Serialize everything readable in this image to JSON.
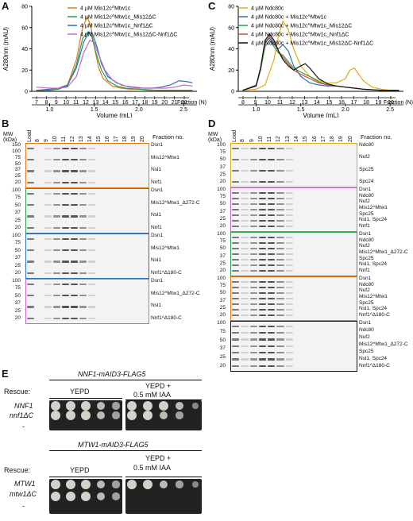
{
  "panels": {
    "A": "A",
    "B": "B",
    "C": "C",
    "D": "D",
    "E": "E"
  },
  "chart_data": [
    {
      "type": "line",
      "panel": "A",
      "xlabel": "Volume (mL)",
      "ylabel": "A280nm (mAU)",
      "xlim": [
        0.8,
        2.65
      ],
      "ylim": [
        0,
        80
      ],
      "x_ticks": [
        "1.0",
        "1.5",
        "2.0",
        "2.5"
      ],
      "y_ticks": [
        "0",
        "20",
        "40",
        "60",
        "80"
      ],
      "fraction_label": "Fraction (N)",
      "fractions": [
        "7",
        "8",
        "9",
        "10",
        "11",
        "12",
        "13",
        "14",
        "15",
        "16",
        "17",
        "18",
        "19",
        "20",
        "21",
        "22"
      ],
      "series": [
        {
          "name": "4 µM Mis12c^Mtw1c",
          "color": "#e07b18",
          "x": [
            0.85,
            1.0,
            1.1,
            1.2,
            1.3,
            1.37,
            1.42,
            1.46,
            1.5,
            1.55,
            1.6,
            1.7,
            1.8,
            1.9,
            2.0,
            2.1,
            2.2,
            2.3,
            2.4,
            2.5,
            2.6
          ],
          "y": [
            1,
            1,
            2,
            6,
            30,
            60,
            70,
            62,
            42,
            22,
            12,
            5,
            3,
            2,
            2,
            1,
            1,
            1,
            1,
            1,
            1
          ]
        },
        {
          "name": "4 µM Mis12c^Mtw1c_Mis12ΔC",
          "color": "#2a9d4a",
          "x": [
            0.85,
            1.0,
            1.1,
            1.2,
            1.3,
            1.37,
            1.43,
            1.47,
            1.52,
            1.58,
            1.65,
            1.75,
            1.85,
            2.0,
            2.2,
            2.4,
            2.6
          ],
          "y": [
            1,
            1,
            2,
            5,
            25,
            50,
            56,
            52,
            36,
            20,
            10,
            5,
            3,
            2,
            1,
            1,
            1
          ]
        },
        {
          "name": "4 µM Mis12c^Mtw1c_Nnf1ΔC",
          "color": "#2e6fb5",
          "x": [
            0.85,
            1.0,
            1.1,
            1.2,
            1.3,
            1.38,
            1.44,
            1.48,
            1.53,
            1.58,
            1.65,
            1.75,
            1.85,
            1.95,
            2.05,
            2.15,
            2.25,
            2.35,
            2.45,
            2.55,
            2.6
          ],
          "y": [
            1,
            2,
            3,
            6,
            22,
            46,
            56,
            54,
            42,
            26,
            14,
            8,
            5,
            4,
            3,
            3,
            4,
            6,
            10,
            9,
            8
          ]
        },
        {
          "name": "4 µM Mis12c^Mtw1c_Mis12ΔC-Nnf1ΔC",
          "color": "#c46ac4",
          "x": [
            0.85,
            1.0,
            1.1,
            1.2,
            1.3,
            1.38,
            1.45,
            1.5,
            1.55,
            1.62,
            1.7,
            1.8,
            1.9,
            2.0,
            2.1,
            2.2,
            2.3,
            2.4,
            2.5,
            2.6
          ],
          "y": [
            4,
            3,
            3,
            4,
            14,
            36,
            48,
            46,
            34,
            20,
            11,
            6,
            4,
            3,
            3,
            3,
            3,
            4,
            6,
            5
          ]
        }
      ]
    },
    {
      "type": "line",
      "panel": "C",
      "xlabel": "Volume (mL)",
      "ylabel": "A280nm (mAU)",
      "xlim": [
        0.8,
        2.65
      ],
      "ylim": [
        0,
        80
      ],
      "x_ticks": [
        "1.0",
        "1.5",
        "2.0",
        "2.5"
      ],
      "y_ticks": [
        "0",
        "20",
        "40",
        "60",
        "80"
      ],
      "fraction_label": "Fraction (N)",
      "fractions": [
        "8",
        "9",
        "10",
        "11",
        "12",
        "13",
        "14",
        "15",
        "16",
        "17",
        "18",
        "19",
        "20"
      ],
      "series": [
        {
          "name": "4 µM Ndc80c",
          "color": "#e0a91a",
          "x": [
            0.85,
            1.0,
            1.1,
            1.2,
            1.25,
            1.3,
            1.36,
            1.42,
            1.5,
            1.6,
            1.7,
            1.8,
            1.9,
            2.0,
            2.05,
            2.1,
            2.2,
            2.3,
            2.4,
            2.5,
            2.6
          ],
          "y": [
            1,
            2,
            6,
            30,
            52,
            66,
            58,
            40,
            24,
            14,
            10,
            8,
            8,
            12,
            20,
            22,
            10,
            4,
            2,
            1,
            1
          ]
        },
        {
          "name": "4 µM Ndc80c + Mis12c^Mtw1c",
          "color": "#2e6fb5",
          "x": [
            0.85,
            1.0,
            1.05,
            1.1,
            1.15,
            1.2,
            1.25,
            1.3,
            1.36,
            1.42,
            1.5,
            1.6,
            1.7,
            1.8,
            1.9,
            2.0,
            2.1,
            2.2,
            2.4,
            2.6
          ],
          "y": [
            1,
            6,
            22,
            46,
            50,
            44,
            40,
            44,
            38,
            24,
            14,
            8,
            6,
            5,
            5,
            4,
            3,
            2,
            1,
            1
          ]
        },
        {
          "name": "4 µM Ndc80c + Mis12c^Mtw1c_Mis12ΔC",
          "color": "#2a9d4a",
          "x": [
            0.85,
            1.0,
            1.05,
            1.1,
            1.15,
            1.2,
            1.25,
            1.3,
            1.36,
            1.42,
            1.5,
            1.6,
            1.7,
            1.8,
            1.9,
            2.0,
            2.2,
            2.4,
            2.6
          ],
          "y": [
            1,
            5,
            20,
            42,
            48,
            42,
            36,
            34,
            28,
            22,
            18,
            14,
            9,
            6,
            5,
            4,
            2,
            1,
            1
          ]
        },
        {
          "name": "4 µM Ndc80c + Mis12c^Mtw1c_Nnf1ΔC",
          "color": "#d0483c",
          "x": [
            0.85,
            1.0,
            1.05,
            1.1,
            1.15,
            1.2,
            1.25,
            1.3,
            1.36,
            1.42,
            1.5,
            1.6,
            1.7,
            1.8,
            1.9,
            2.0,
            2.2,
            2.4,
            2.6
          ],
          "y": [
            1,
            5,
            22,
            46,
            52,
            46,
            38,
            32,
            26,
            20,
            16,
            12,
            8,
            6,
            5,
            4,
            2,
            1,
            1
          ]
        },
        {
          "name": "4 µM Ndc80c + Mis12c^Mtw1c_Mis12ΔC-Nnf1ΔC",
          "color": "#111111",
          "x": [
            0.85,
            1.0,
            1.05,
            1.1,
            1.15,
            1.2,
            1.25,
            1.3,
            1.36,
            1.42,
            1.5,
            1.55,
            1.6,
            1.7,
            1.8,
            1.9,
            2.0,
            2.2,
            2.4,
            2.6
          ],
          "y": [
            1,
            5,
            22,
            48,
            54,
            48,
            38,
            30,
            24,
            20,
            24,
            26,
            22,
            12,
            7,
            5,
            4,
            2,
            1,
            1
          ]
        }
      ]
    }
  ],
  "gels_B": {
    "mw_header": "MW (kDa)",
    "load_label": "Load",
    "lane_labels": [
      "8",
      "9",
      "10",
      "11",
      "12",
      "13",
      "14",
      "15",
      "16",
      "17",
      "18",
      "19",
      "20"
    ],
    "fraction_header": "Fraction no.",
    "blots": [
      {
        "color": "#e07b18",
        "mw": [
          "150",
          "100",
          "75",
          "50",
          "37",
          "25",
          "20"
        ],
        "labels": [
          "Dsn1",
          "Mis12^Mtw1",
          "Nsl1",
          "Nnf1"
        ]
      },
      {
        "color": "#2a9d4a",
        "mw": [
          "100",
          "75",
          "50",
          "37",
          "25",
          "20"
        ],
        "labels": [
          "Dsn1",
          "Mis12^Mtw1_Δ272-C",
          "Nsl1",
          "Nnf1"
        ]
      },
      {
        "color": "#2e6fb5",
        "mw": [
          "100",
          "75",
          "50",
          "37",
          "25",
          "20"
        ],
        "labels": [
          "Dsn1",
          "Mis12^Mtw1",
          "Nsl1",
          "Nnf1^Δ180-C"
        ]
      },
      {
        "color": "#c46ac4",
        "mw": [
          "100",
          "75",
          "50",
          "37",
          "25",
          "20"
        ],
        "labels": [
          "Dsn1",
          "Mis12^Mtw1_Δ272-C",
          "Nsl1",
          "Nnf1^Δ180-C"
        ]
      }
    ]
  },
  "gels_D": {
    "mw_header": "MW (kDa)",
    "load_label": "Load",
    "lane_labels": [
      "8",
      "9",
      "10",
      "11",
      "12",
      "13",
      "14",
      "15",
      "16",
      "17",
      "18",
      "19",
      "20"
    ],
    "fraction_header": "Fraction no.",
    "blots": [
      {
        "color": "#e0a91a",
        "mw": [
          "100",
          "75",
          "50",
          "37",
          "25",
          "20"
        ],
        "labels": [
          "Ndc80",
          "Nuf2",
          "Spc25",
          "Spc24"
        ]
      },
      {
        "color": "#c46ac4",
        "mw": [
          "100",
          "75",
          "50",
          "37",
          "25",
          "20"
        ],
        "labels": [
          "Dsn1",
          "Ndc80",
          "Nuf2",
          "Mis12^Mtw1",
          "Spc25",
          "Nsl1, Spc24",
          "Nnf1"
        ]
      },
      {
        "color": "#2a9d4a",
        "mw": [
          "100",
          "75",
          "50",
          "37",
          "25",
          "20"
        ],
        "labels": [
          "Dsn1",
          "Ndc80",
          "Nuf2",
          "Mis12^Mtw1_Δ272-C",
          "Spc25",
          "Nsl1, Spc24",
          "Nnf1"
        ]
      },
      {
        "color": "#e07b18",
        "mw": [
          "100",
          "75",
          "50",
          "37",
          "25",
          "20"
        ],
        "labels": [
          "Dsn1",
          "Ndc80",
          "Nuf2",
          "Mis12^Mtw1",
          "Spc25",
          "Nsl1, Spc24",
          "Nnf1^Δ180-C"
        ]
      },
      {
        "color": "#111111",
        "mw": [
          "100",
          "75",
          "50",
          "37",
          "25",
          "20"
        ],
        "labels": [
          "Dsn1",
          "Ndc80",
          "Nuf2",
          "Mis12^Mtw1_Δ272-C",
          "Spc25",
          "Nsl1, Spc24",
          "Nnf1^Δ180-C"
        ]
      }
    ]
  },
  "spot_E": {
    "top_title": "NNF1-mAID3-FLAG5",
    "bottom_title": "MTW1-mAID3-FLAG5",
    "rescue_label": "Rescue:",
    "col1": "YEPD",
    "col2_line1": "YEPD +",
    "col2_line2": "0.5 mM IAA",
    "top_rows": [
      "NNF1",
      "nnf1ΔC",
      "-"
    ],
    "bottom_rows": [
      "MTW1",
      "mtw1ΔC",
      "-"
    ]
  }
}
